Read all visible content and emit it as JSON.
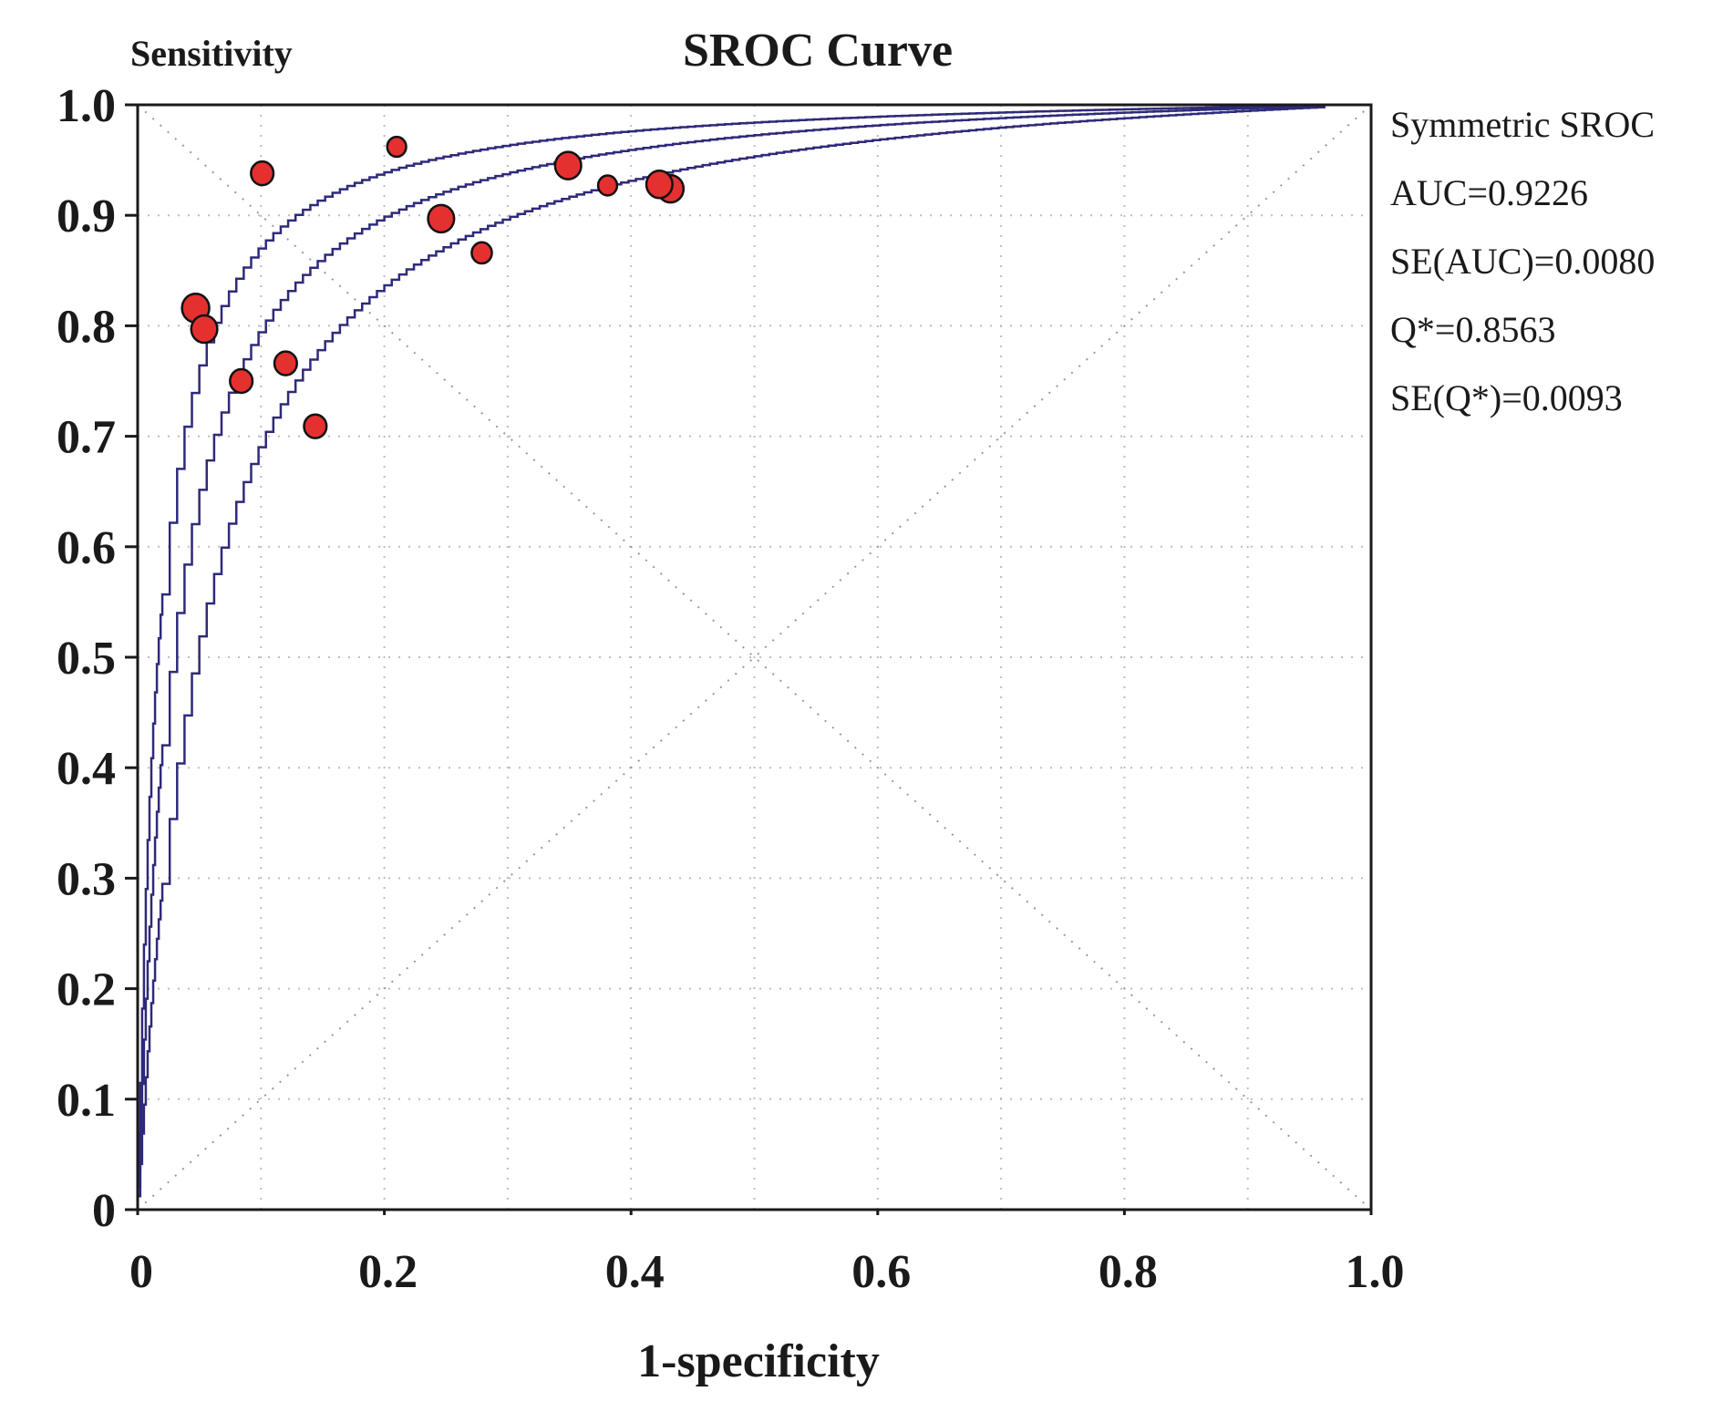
{
  "chart_data": {
    "type": "scatter",
    "title": "SROC Curve",
    "xlabel": "1-specificity",
    "ylabel": "Sensitivity",
    "xlim": [
      0,
      1
    ],
    "ylim": [
      0,
      1
    ],
    "grid": true,
    "x_ticks": [
      "0",
      "0.2",
      "0.4",
      "0.6",
      "0.8",
      "1.0"
    ],
    "y_ticks": [
      "0",
      "0.1",
      "0.2",
      "0.3",
      "0.4",
      "0.5",
      "0.6",
      "0.7",
      "0.8",
      "0.9",
      "1.0"
    ],
    "series": [
      {
        "name": "Studies",
        "kind": "points",
        "color": "#e53030",
        "points": [
          {
            "x": 0.047,
            "y": 0.816,
            "size": 1.15
          },
          {
            "x": 0.054,
            "y": 0.797,
            "size": 1.1
          },
          {
            "x": 0.084,
            "y": 0.75,
            "size": 0.95
          },
          {
            "x": 0.101,
            "y": 0.938,
            "size": 0.95
          },
          {
            "x": 0.12,
            "y": 0.766,
            "size": 0.95
          },
          {
            "x": 0.144,
            "y": 0.709,
            "size": 0.95
          },
          {
            "x": 0.21,
            "y": 0.962,
            "size": 0.8
          },
          {
            "x": 0.246,
            "y": 0.897,
            "size": 1.1
          },
          {
            "x": 0.279,
            "y": 0.866,
            "size": 0.85
          },
          {
            "x": 0.349,
            "y": 0.945,
            "size": 1.1
          },
          {
            "x": 0.381,
            "y": 0.927,
            "size": 0.8
          },
          {
            "x": 0.432,
            "y": 0.924,
            "size": 1.1
          },
          {
            "x": 0.423,
            "y": 0.928,
            "size": 1.1
          }
        ]
      },
      {
        "name": "Symmetric SROC",
        "kind": "curve",
        "color": "#2e2a7a",
        "dor_log": 3.57
      },
      {
        "name": "Upper bound",
        "kind": "curve",
        "color": "#2e2a7a",
        "dor_log": 4.12
      },
      {
        "name": "Lower bound",
        "kind": "curve",
        "color": "#2e2a7a",
        "dor_log": 3.02
      }
    ],
    "reference_lines": [
      "diagonal y=x",
      "anti-diagonal y=1-x"
    ],
    "curve_x_end": 0.962,
    "annotations": {
      "legend_position": "right",
      "lines": [
        "Symmetric SROC",
        "AUC=0.9226",
        "SE(AUC)=0.0080",
        "Q*=0.8563",
        "SE(Q*)=0.0093"
      ]
    }
  }
}
